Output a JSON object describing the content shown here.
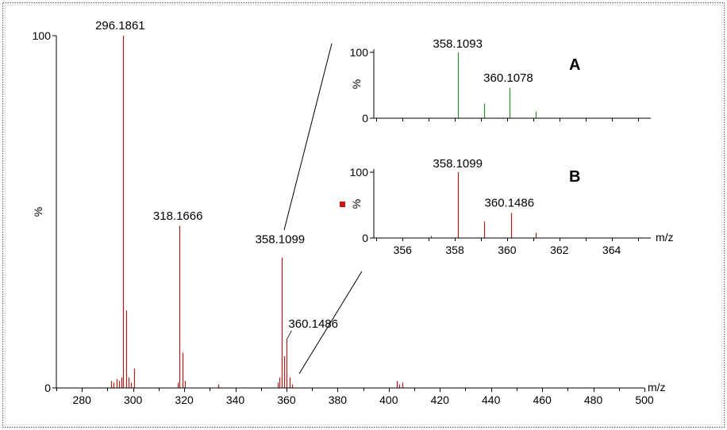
{
  "chart_data": [
    {
      "id": "main",
      "type": "bar",
      "xlabel": "m/z",
      "ylabel": "%",
      "xlim": [
        270,
        500
      ],
      "ylim": [
        0,
        100
      ],
      "xticks": [
        280,
        300,
        320,
        340,
        360,
        380,
        400,
        420,
        440,
        460,
        480,
        500
      ],
      "yticks": [
        0,
        100
      ],
      "color": "#b01c1c",
      "peaks": [
        {
          "x": 291.5,
          "y": 2
        },
        {
          "x": 292.5,
          "y": 1.5
        },
        {
          "x": 293.5,
          "y": 2.5
        },
        {
          "x": 294.5,
          "y": 2
        },
        {
          "x": 295.3,
          "y": 3
        },
        {
          "x": 296.1861,
          "y": 100,
          "label": "296.1861"
        },
        {
          "x": 297.2,
          "y": 22
        },
        {
          "x": 298.2,
          "y": 3
        },
        {
          "x": 299.2,
          "y": 1.5
        },
        {
          "x": 300.5,
          "y": 5.5
        },
        {
          "x": 317.5,
          "y": 1.5
        },
        {
          "x": 318.1666,
          "y": 46,
          "label": "318.1666"
        },
        {
          "x": 319.2,
          "y": 10
        },
        {
          "x": 320.2,
          "y": 2
        },
        {
          "x": 333.2,
          "y": 1
        },
        {
          "x": 356.5,
          "y": 1.5
        },
        {
          "x": 357.2,
          "y": 3
        },
        {
          "x": 358.1099,
          "y": 37,
          "label": "358.1099"
        },
        {
          "x": 359.1,
          "y": 9
        },
        {
          "x": 360.1486,
          "y": 14,
          "label": "360.1486"
        },
        {
          "x": 361.2,
          "y": 3
        },
        {
          "x": 362.2,
          "y": 1
        },
        {
          "x": 403.2,
          "y": 2
        },
        {
          "x": 404.2,
          "y": 1
        },
        {
          "x": 405.2,
          "y": 1.5
        }
      ]
    },
    {
      "id": "inset-a",
      "type": "bar",
      "panel_label": "A",
      "ylabel": "%",
      "xlim": [
        354.9,
        365.5
      ],
      "ylim": [
        0,
        100
      ],
      "yticks": [
        0,
        100
      ],
      "color": "#2e8b2e",
      "peaks": [
        {
          "x": 358.1093,
          "y": 100,
          "label": "358.1093"
        },
        {
          "x": 359.11,
          "y": 22
        },
        {
          "x": 360.1078,
          "y": 46,
          "label": "360.1078"
        },
        {
          "x": 361.11,
          "y": 10
        }
      ]
    },
    {
      "id": "inset-b",
      "type": "bar",
      "panel_label": "B",
      "xlabel": "m/z",
      "ylabel": "%",
      "xlim": [
        354.9,
        365.5
      ],
      "ylim": [
        0,
        100
      ],
      "xticks": [
        356,
        358,
        360,
        362,
        364
      ],
      "yticks": [
        0,
        100
      ],
      "color": "#b01c1c",
      "peaks": [
        {
          "x": 357.1,
          "y": 3
        },
        {
          "x": 358.1099,
          "y": 100,
          "label": "358.1099"
        },
        {
          "x": 359.11,
          "y": 25
        },
        {
          "x": 360.1486,
          "y": 38,
          "label": "360.1486"
        },
        {
          "x": 361.11,
          "y": 8
        }
      ]
    }
  ]
}
